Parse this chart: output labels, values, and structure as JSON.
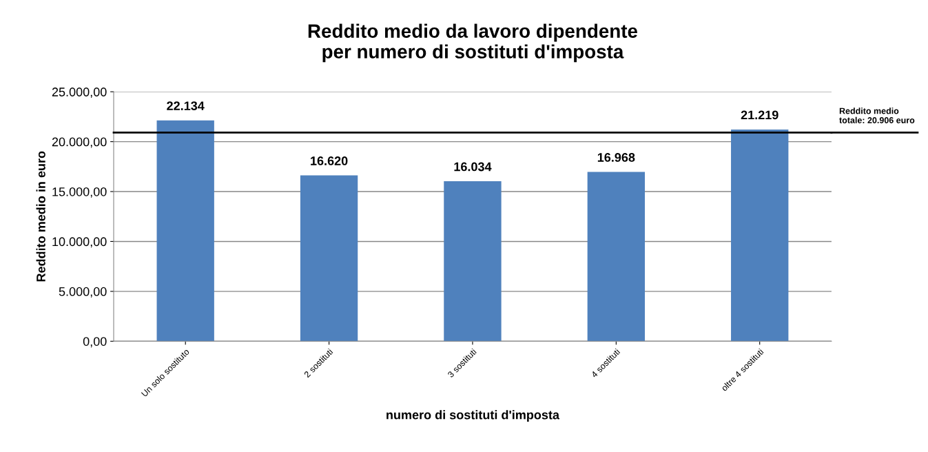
{
  "chart_data": {
    "type": "bar",
    "title": "Reddito medio da lavoro dipendente\nper numero di sostituti d'imposta",
    "xlabel": "numero di sostituti d'imposta",
    "ylabel": "Reddito medio in euro",
    "categories": [
      "Un solo sostituto",
      "2 sostituti",
      "3 sostituti",
      "4 sostituti",
      "oltre 4 sostituti"
    ],
    "values": [
      22134,
      16620,
      16034,
      16968,
      21219
    ],
    "value_labels": [
      "22.134",
      "16.620",
      "16.034",
      "16.968",
      "21.219"
    ],
    "color": "#4f81bd",
    "ylim": [
      0,
      25000
    ],
    "yticks": [
      {
        "value": 0,
        "label": "0,00"
      },
      {
        "value": 5000,
        "label": "5.000,00"
      },
      {
        "value": 10000,
        "label": "10.000,00"
      },
      {
        "value": 15000,
        "label": "15.000,00"
      },
      {
        "value": 20000,
        "label": "20.000,00"
      },
      {
        "value": 25000,
        "label": "25.000,00"
      }
    ],
    "grid": "y",
    "ref_lines": [
      {
        "axis": "y",
        "value": 20906,
        "label": "Reddito medio\ntotale: 20.906 euro",
        "color": "#000000"
      }
    ]
  }
}
